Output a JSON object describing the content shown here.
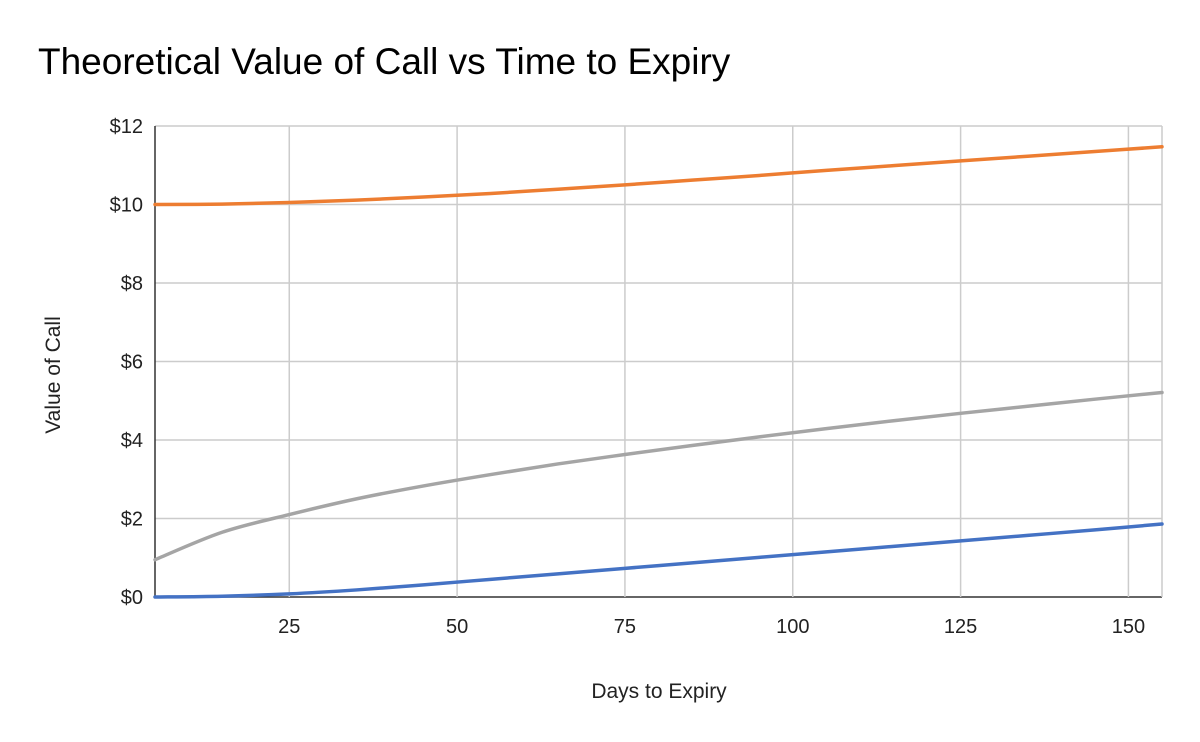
{
  "chart_data": {
    "type": "line",
    "title": "Theoretical Value of Call vs Time to Expiry",
    "xlabel": "Days to Expiry",
    "ylabel": "Value of Call",
    "xlim": [
      5,
      155
    ],
    "ylim": [
      0,
      12
    ],
    "x_ticks": [
      25,
      50,
      75,
      100,
      125,
      150
    ],
    "y_ticks": [
      0,
      2,
      4,
      6,
      8,
      10,
      12
    ],
    "y_tick_labels": [
      "$0",
      "$2",
      "$4",
      "$6",
      "$8",
      "$10",
      "$12"
    ],
    "grid": true,
    "legend": "none",
    "series": [
      {
        "color": "#ed7d31",
        "x": [
          5,
          15,
          25,
          35,
          45,
          55,
          65,
          75,
          85,
          95,
          105,
          115,
          125,
          135,
          145,
          155
        ],
        "values": [
          10.0,
          10.01,
          10.05,
          10.11,
          10.19,
          10.28,
          10.39,
          10.5,
          10.62,
          10.74,
          10.87,
          10.99,
          11.11,
          11.23,
          11.35,
          11.47
        ]
      },
      {
        "color": "#a5a5a5",
        "x": [
          5,
          15,
          25,
          35,
          45,
          55,
          65,
          75,
          85,
          95,
          105,
          115,
          125,
          135,
          145,
          155
        ],
        "values": [
          0.95,
          1.65,
          2.1,
          2.5,
          2.83,
          3.12,
          3.39,
          3.63,
          3.86,
          4.08,
          4.29,
          4.49,
          4.68,
          4.86,
          5.04,
          5.21
        ]
      },
      {
        "color": "#4472c4",
        "x": [
          5,
          15,
          25,
          35,
          45,
          55,
          65,
          75,
          85,
          95,
          105,
          115,
          125,
          135,
          145,
          155
        ],
        "values": [
          0.0,
          0.02,
          0.08,
          0.18,
          0.31,
          0.45,
          0.59,
          0.73,
          0.87,
          1.01,
          1.15,
          1.29,
          1.43,
          1.57,
          1.71,
          1.86
        ]
      }
    ]
  }
}
